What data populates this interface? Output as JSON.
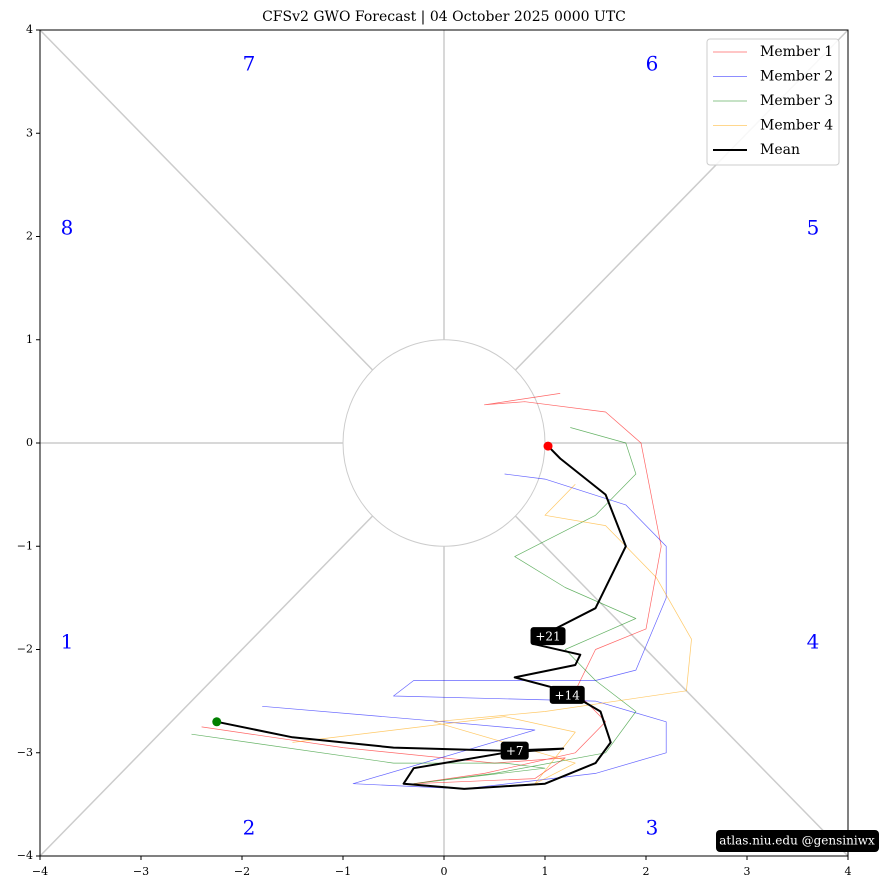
{
  "chart_data": {
    "type": "phase",
    "title": "CFSv2 GWO Forecast   |   04  October  2025 0000 UTC",
    "xlim": [
      -4,
      4
    ],
    "ylim": [
      -4,
      4
    ],
    "xticks": [
      {
        "value": -4,
        "label": "−4"
      },
      {
        "value": -3,
        "label": "−3"
      },
      {
        "value": -2,
        "label": "−2"
      },
      {
        "value": -1,
        "label": "−1"
      },
      0,
      1,
      2,
      3,
      4
    ],
    "yticks": [
      {
        "value": -4,
        "label": "−4"
      },
      {
        "value": -3,
        "label": "−3"
      },
      {
        "value": -2,
        "label": "−2"
      },
      {
        "value": -1,
        "label": "−1"
      },
      0,
      1,
      2,
      3,
      4
    ],
    "phase_labels": [
      "1",
      "2",
      "3",
      "4",
      "5",
      "6",
      "7",
      "8"
    ],
    "phase_label_color": "#0000ff",
    "legend": "upper right",
    "series": [
      {
        "name": "Member 1",
        "color": "#ff0000",
        "x": [
          -2.4,
          -1.0,
          0.5,
          1.2,
          0.9,
          -0.3,
          0.4,
          1.3,
          1.6,
          1.3,
          1.5,
          2.0,
          2.15,
          1.95,
          1.6,
          0.8,
          0.4,
          1.15
        ],
        "y": [
          -2.75,
          -2.95,
          -3.1,
          -3.05,
          -3.25,
          -3.3,
          -3.2,
          -3.0,
          -2.7,
          -2.4,
          -2.0,
          -1.8,
          -1.0,
          0.0,
          0.3,
          0.4,
          0.37,
          0.48
        ]
      },
      {
        "name": "Member 2",
        "color": "#0000ff",
        "x": [
          -1.8,
          0.0,
          0.9,
          -0.9,
          0.2,
          1.5,
          2.2,
          2.2,
          1.5,
          -0.5,
          -0.3,
          1.5,
          1.9,
          2.2,
          2.2,
          1.8,
          1.0,
          0.6
        ],
        "y": [
          -2.55,
          -2.7,
          -2.78,
          -3.3,
          -3.35,
          -3.2,
          -3.0,
          -2.7,
          -2.5,
          -2.45,
          -2.3,
          -2.3,
          -2.2,
          -1.5,
          -1.0,
          -0.6,
          -0.35,
          -0.3
        ]
      },
      {
        "name": "Member 3",
        "color": "#008000",
        "x": [
          -2.5,
          -0.5,
          0.6,
          1.0,
          -0.3,
          0.5,
          1.6,
          1.9,
          1.5,
          1.2,
          1.9,
          1.2,
          0.7,
          1.5,
          1.9,
          1.8,
          1.25
        ],
        "y": [
          -2.82,
          -3.1,
          -3.1,
          -3.15,
          -3.3,
          -3.2,
          -3.0,
          -2.6,
          -2.3,
          -2.0,
          -1.7,
          -1.4,
          -1.1,
          -0.7,
          -0.3,
          0.0,
          0.15
        ]
      },
      {
        "name": "Member 4",
        "color": "#ffa500",
        "x": [
          -1.5,
          0.6,
          1.3,
          0.9,
          1.3,
          -0.1,
          1.0,
          2.4,
          2.45,
          2.1,
          1.6,
          1.0,
          1.3
        ],
        "y": [
          -2.9,
          -2.65,
          -2.8,
          -3.3,
          -3.1,
          -2.7,
          -2.6,
          -2.4,
          -1.9,
          -1.3,
          -0.8,
          -0.7,
          -0.4
        ]
      },
      {
        "name": "Mean",
        "color": "#000000",
        "x": [
          -2.25,
          -1.5,
          -0.5,
          0.6,
          1.18,
          0.6,
          -0.3,
          -0.4,
          0.2,
          1.0,
          1.5,
          1.65,
          1.55,
          1.2,
          0.7,
          1.3,
          1.35,
          0.9,
          1.0,
          1.5,
          1.8,
          1.6,
          1.15,
          1.03
        ],
        "y": [
          -2.7,
          -2.85,
          -2.95,
          -2.98,
          -2.96,
          -3.0,
          -3.15,
          -3.3,
          -3.35,
          -3.3,
          -3.1,
          -2.9,
          -2.6,
          -2.4,
          -2.27,
          -2.15,
          -2.05,
          -1.95,
          -1.85,
          -1.6,
          -1.0,
          -0.5,
          -0.15,
          -0.03
        ]
      }
    ],
    "start_color": "#008000",
    "end_color": "#ff0000",
    "annotations": [
      {
        "text": "+21",
        "x": 1.03,
        "y": -1.87
      },
      {
        "text": "+14",
        "x": 1.22,
        "y": -2.44
      },
      {
        "text": "+7",
        "x": 0.7,
        "y": -2.98
      }
    ],
    "credit": "atlas.niu.edu  @gensiniwx"
  }
}
